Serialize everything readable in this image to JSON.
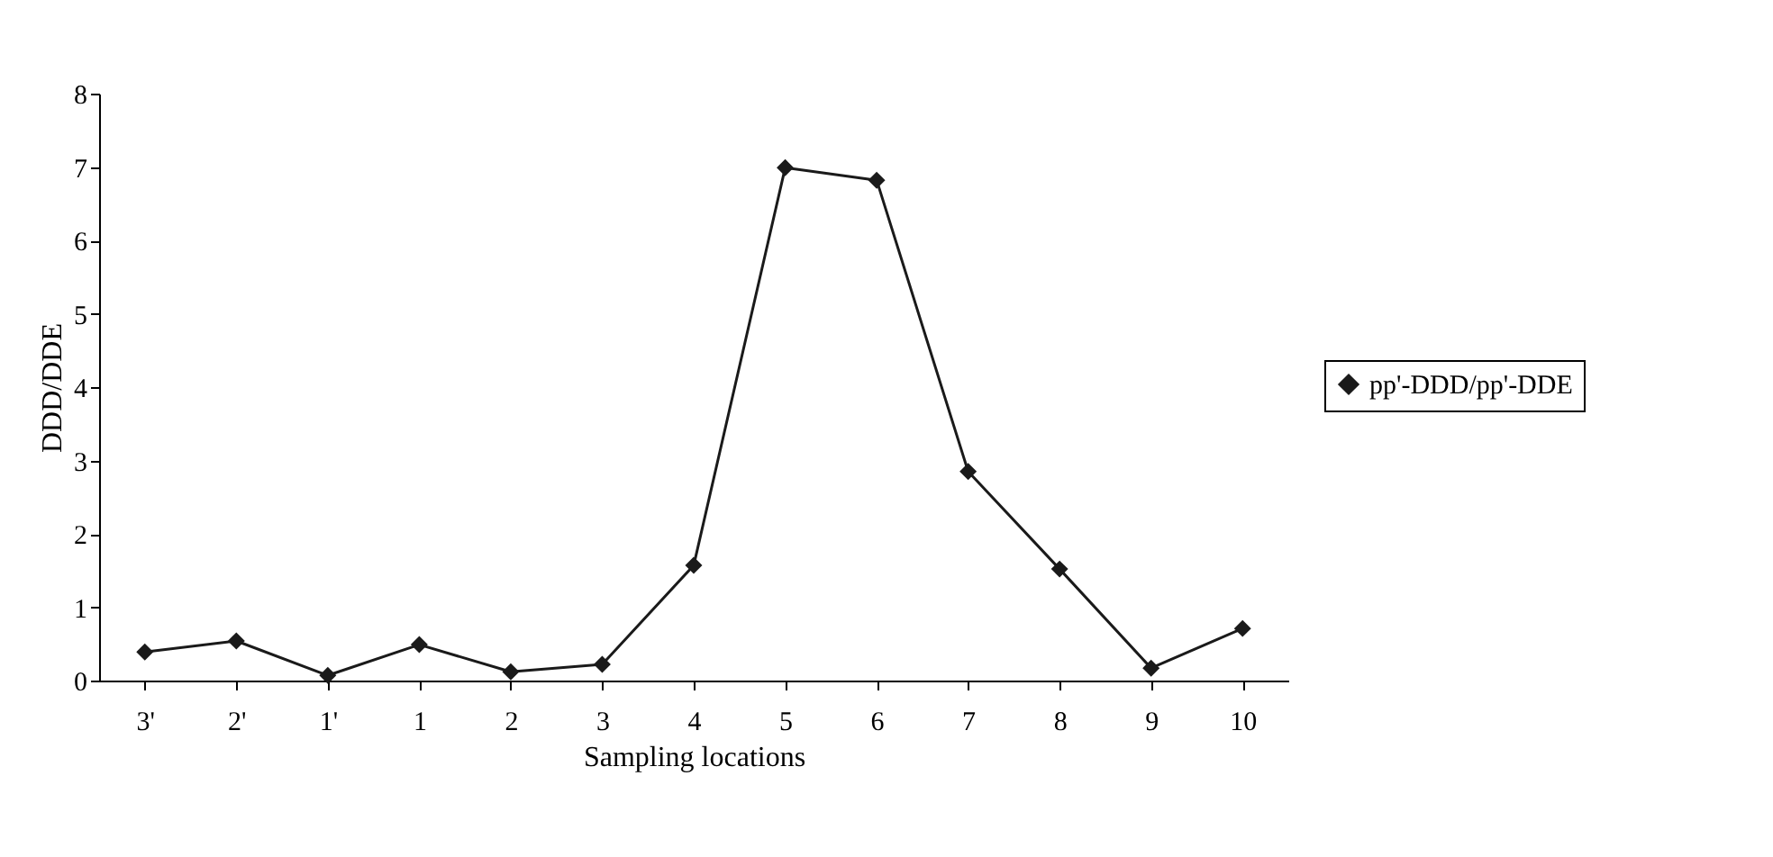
{
  "chart_data": {
    "type": "line",
    "xlabel": "Sampling locations",
    "ylabel": "DDD/DDE",
    "categories": [
      "3'",
      "2'",
      "1'",
      "1",
      "2",
      "3",
      "4",
      "5",
      "6",
      "7",
      "8",
      "9",
      "10"
    ],
    "series": [
      {
        "name": "pp'-DDD/pp'-DDE",
        "color": "#1a1a1a",
        "values": [
          0.39,
          0.54,
          0.07,
          0.49,
          0.12,
          0.22,
          1.57,
          6.99,
          6.82,
          2.85,
          1.52,
          0.17,
          0.71
        ]
      }
    ],
    "ylim": [
      0,
      8
    ],
    "yticks": [
      0,
      1,
      2,
      3,
      4,
      5,
      6,
      7,
      8
    ],
    "grid": false,
    "legend": "right",
    "marker": "diamond",
    "line_style": "solid"
  }
}
